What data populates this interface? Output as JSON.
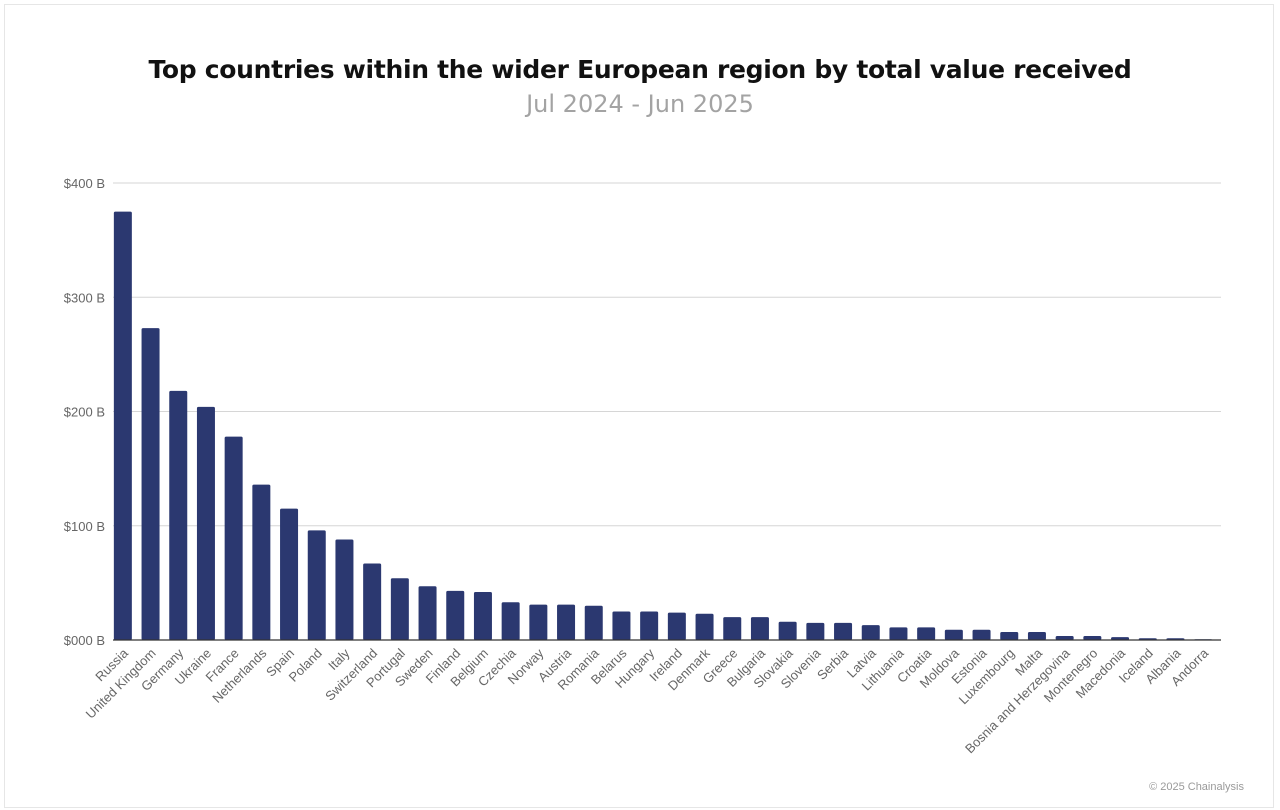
{
  "chart_data": {
    "type": "bar",
    "title": "Top countries within the wider European region by total value received",
    "subtitle": "Jul 2024 - Jun 2025",
    "xlabel": "",
    "ylabel": "",
    "ylim": [
      0,
      400
    ],
    "yticks": [
      {
        "value": 0,
        "label": "$000 B"
      },
      {
        "value": 100,
        "label": "$100 B"
      },
      {
        "value": 200,
        "label": "$200 B"
      },
      {
        "value": 300,
        "label": "$300 B"
      },
      {
        "value": 400,
        "label": "$400 B"
      }
    ],
    "grid": true,
    "legend": "none",
    "bar_color": "#2b3870",
    "categories": [
      "Russia",
      "United Kingdom",
      "Germany",
      "Ukraine",
      "France",
      "Netherlands",
      "Spain",
      "Poland",
      "Italy",
      "Switzerland",
      "Portugal",
      "Sweden",
      "Finland",
      "Belgium",
      "Czechia",
      "Norway",
      "Austria",
      "Romania",
      "Belarus",
      "Hungary",
      "Ireland",
      "Denmark",
      "Greece",
      "Bulgaria",
      "Slovakia",
      "Slovenia",
      "Serbia",
      "Latvia",
      "Lithuania",
      "Croatia",
      "Moldova",
      "Estonia",
      "Luxembourg",
      "Malta",
      "Bosnia and Herzegovina",
      "Montenegro",
      "Macedonia",
      "Iceland",
      "Albania",
      "Andorra"
    ],
    "values": [
      375,
      273,
      218,
      204,
      178,
      136,
      115,
      96,
      88,
      67,
      54,
      47,
      43,
      42,
      33,
      31,
      31,
      30,
      25,
      25,
      24,
      23,
      20,
      20,
      16,
      15,
      15,
      13,
      11,
      11,
      9,
      9,
      7,
      7,
      3.5,
      3.5,
      2.5,
      1.5,
      1.5,
      0.3
    ]
  },
  "credit": "© 2025 Chainalysis"
}
